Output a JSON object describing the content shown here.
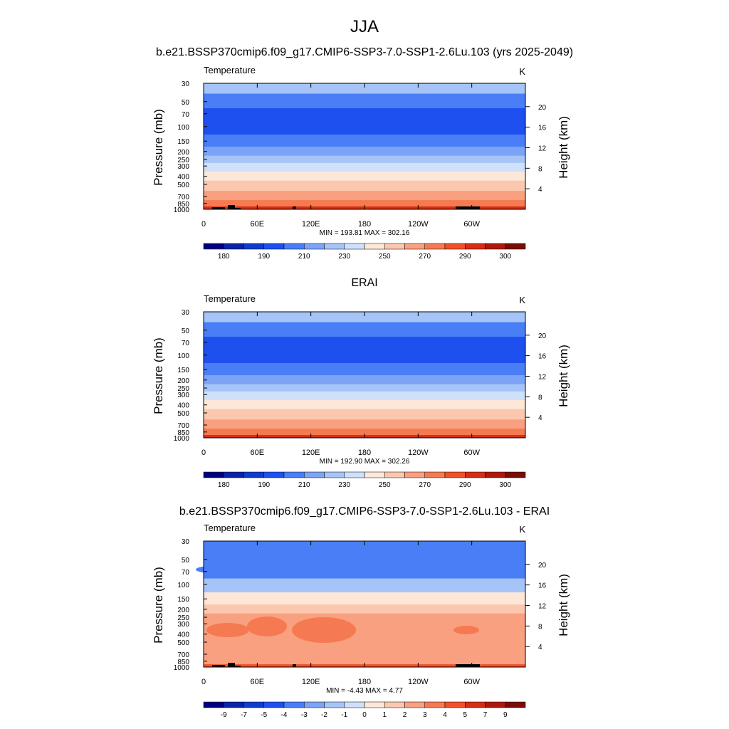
{
  "page_title": "JJA",
  "palette_temp": [
    "#000080",
    "#0a24a8",
    "#0f3ccc",
    "#1e50f0",
    "#4a7ef7",
    "#7ba4f7",
    "#a6c4f7",
    "#cfe0fb",
    "#fde7d8",
    "#fbc7ae",
    "#f8a07f",
    "#f57a51",
    "#f2502a",
    "#d62d15",
    "#ad1a0d",
    "#7a0b05"
  ],
  "palette_diff": [
    "#000080",
    "#0a24a8",
    "#0f3ccc",
    "#1e50f0",
    "#4a7ef7",
    "#7ba4f7",
    "#a6c4f7",
    "#cfe0fb",
    "#fde7d8",
    "#fbc7ae",
    "#f8a07f",
    "#f57a51",
    "#f2502a",
    "#d62d15",
    "#ad1a0d",
    "#7a0b05"
  ],
  "chart_data": [
    {
      "type": "heatmap",
      "title": "b.e21.BSSP370cmip6.f09_g17.CMIP6-SSP3-7.0-SSP1-2.6Lu.103 (yrs 2025-2049)",
      "left_label": "Temperature",
      "units": "K",
      "ylabel": "Pressure (mb)",
      "ylabel_right": "Height (km)",
      "xticks": [
        "0",
        "60E",
        "120E",
        "180",
        "120W",
        "60W"
      ],
      "yticks": [
        "30",
        "50",
        "70",
        "100",
        "150",
        "200",
        "250",
        "300",
        "400",
        "500",
        "700",
        "850",
        "1000"
      ],
      "height_ticks": [
        "4",
        "8",
        "12",
        "16",
        "20"
      ],
      "minmax": "MIN = 193.81  MAX = 302.16",
      "colorbar_labels": [
        "180",
        "190",
        "210",
        "230",
        "250",
        "270",
        "290",
        "300"
      ],
      "levels": [
        30,
        50,
        70,
        100,
        150,
        200,
        250,
        300,
        400,
        500,
        700,
        850,
        1000
      ],
      "band_colors": [
        6,
        4,
        3,
        3,
        4,
        5,
        6,
        7,
        8,
        9,
        10,
        11,
        12,
        13
      ]
    },
    {
      "type": "heatmap",
      "title": "ERAI",
      "left_label": "Temperature",
      "units": "K",
      "ylabel": "Pressure (mb)",
      "ylabel_right": "Height (km)",
      "xticks": [
        "0",
        "60E",
        "120E",
        "180",
        "120W",
        "60W"
      ],
      "yticks": [
        "30",
        "50",
        "70",
        "100",
        "150",
        "200",
        "250",
        "300",
        "400",
        "500",
        "700",
        "850",
        "1000"
      ],
      "height_ticks": [
        "4",
        "8",
        "12",
        "16",
        "20"
      ],
      "minmax": "MIN = 192.90  MAX = 302.26",
      "colorbar_labels": [
        "180",
        "190",
        "210",
        "230",
        "250",
        "270",
        "290",
        "300"
      ],
      "levels": [
        30,
        50,
        70,
        100,
        150,
        200,
        250,
        300,
        400,
        500,
        700,
        850,
        1000
      ],
      "band_colors": [
        6,
        4,
        3,
        3,
        4,
        5,
        6,
        7,
        8,
        9,
        10,
        11,
        12,
        13
      ]
    },
    {
      "type": "heatmap",
      "title": "b.e21.BSSP370cmip6.f09_g17.CMIP6-SSP3-7.0-SSP1-2.6Lu.103 - ERAI",
      "left_label": "Temperature",
      "units": "K",
      "ylabel": "Pressure (mb)",
      "ylabel_right": "Height (km)",
      "xticks": [
        "0",
        "60E",
        "120E",
        "180",
        "120W",
        "60W"
      ],
      "yticks": [
        "30",
        "50",
        "70",
        "100",
        "150",
        "200",
        "250",
        "300",
        "400",
        "500",
        "700",
        "850",
        "1000"
      ],
      "height_ticks": [
        "4",
        "8",
        "12",
        "16",
        "20"
      ],
      "minmax": "MIN =  -4.43  MAX =   4.77",
      "colorbar_labels": [
        "-9",
        "-7",
        "-5",
        "-4",
        "-3",
        "-2",
        "-1",
        "0",
        "1",
        "2",
        "3",
        "4",
        "5",
        "7",
        "9"
      ],
      "levels": [
        30,
        50,
        70,
        100,
        150,
        200,
        250,
        300,
        400,
        500,
        700,
        850,
        1000
      ],
      "band_colors": [
        4,
        4,
        4,
        6,
        8,
        9,
        10,
        10,
        10,
        10,
        10,
        10,
        9,
        12
      ]
    }
  ]
}
